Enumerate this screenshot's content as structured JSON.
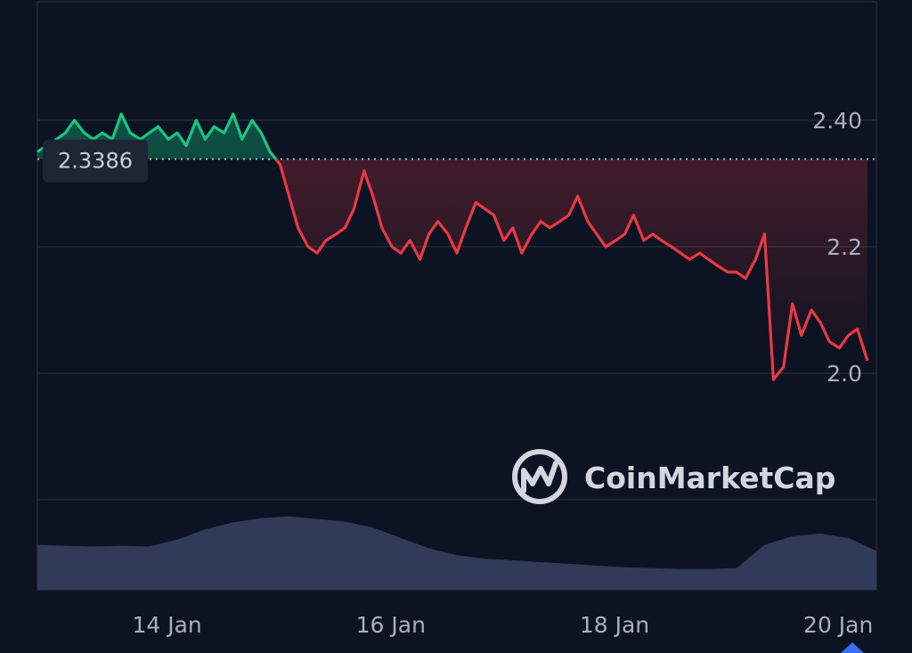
{
  "watermark": {
    "text": "CoinMarketCap",
    "icon": "coinmarketcap-logo-icon"
  },
  "colors": {
    "background": "#0c1322",
    "grid": "#222a38",
    "up": "#16c784",
    "down": "#ea3943",
    "volume": "#323a59",
    "text": "#a8afbd",
    "reference_badge": "#1e2534"
  },
  "chart_data": {
    "type": "line",
    "title": "",
    "xlabel": "",
    "ylabel": "",
    "x_ticks": [
      "14 Jan",
      "16 Jan",
      "18 Jan",
      "20 Jan"
    ],
    "y_ticks": [
      "2.40",
      "2.2",
      "2.0"
    ],
    "ylim": [
      1.8,
      2.55
    ],
    "reference_line": {
      "value": 2.3386,
      "label": "2.3386",
      "style": "dotted"
    },
    "grid": true,
    "legend": "none",
    "color_rule": "above reference green, below reference red",
    "series": [
      {
        "x": [
          13.0,
          13.08,
          13.17,
          13.25,
          13.33,
          13.42,
          13.5,
          13.58,
          13.67,
          13.75,
          13.83,
          13.92,
          14.0,
          14.08,
          14.17,
          14.25,
          14.33,
          14.42,
          14.5,
          14.58,
          14.67,
          14.75,
          14.83,
          14.92,
          15.0,
          15.08,
          15.17,
          15.25,
          15.33,
          15.42,
          15.5,
          15.58,
          15.67,
          15.75,
          15.83,
          15.92,
          16.0,
          16.08,
          16.17,
          16.25,
          16.33,
          16.42,
          16.5,
          16.58,
          16.67,
          16.75,
          16.83,
          16.92,
          17.0,
          17.08,
          17.17,
          17.25,
          17.33,
          17.42,
          17.5,
          17.58,
          17.67,
          17.75,
          17.83,
          17.92,
          18.0,
          18.08,
          18.17,
          18.25,
          18.33,
          18.42,
          18.5,
          18.58,
          18.67,
          18.75,
          18.83,
          18.92,
          19.0,
          19.08,
          19.17,
          19.25,
          19.33,
          19.42,
          19.5,
          19.58,
          19.67,
          19.75,
          19.83,
          19.92,
          20.0,
          20.08,
          20.17,
          20.25,
          20.33,
          20.42
        ],
        "values": [
          2.35,
          2.36,
          2.37,
          2.38,
          2.4,
          2.38,
          2.37,
          2.38,
          2.37,
          2.41,
          2.38,
          2.37,
          2.38,
          2.39,
          2.37,
          2.38,
          2.36,
          2.4,
          2.37,
          2.39,
          2.38,
          2.41,
          2.37,
          2.4,
          2.38,
          2.35,
          2.33,
          2.28,
          2.23,
          2.2,
          2.19,
          2.21,
          2.22,
          2.23,
          2.26,
          2.32,
          2.28,
          2.23,
          2.2,
          2.19,
          2.21,
          2.18,
          2.22,
          2.24,
          2.22,
          2.19,
          2.23,
          2.27,
          2.26,
          2.25,
          2.21,
          2.23,
          2.19,
          2.22,
          2.24,
          2.23,
          2.24,
          2.25,
          2.28,
          2.24,
          2.22,
          2.2,
          2.21,
          2.22,
          2.25,
          2.21,
          2.22,
          2.21,
          2.2,
          2.19,
          2.18,
          2.19,
          2.18,
          2.17,
          2.16,
          2.16,
          2.15,
          2.18,
          2.22,
          1.99,
          2.01,
          2.11,
          2.06,
          2.1,
          2.08,
          2.05,
          2.04,
          2.06,
          2.07,
          2.02
        ]
      },
      {
        "name": "",
        "kind": "volume",
        "x": [
          13.0,
          13.25,
          13.5,
          13.75,
          14.0,
          14.25,
          14.5,
          14.75,
          15.0,
          15.25,
          15.5,
          15.75,
          16.0,
          16.25,
          16.5,
          16.75,
          17.0,
          17.25,
          17.5,
          17.75,
          18.0,
          18.25,
          18.5,
          18.75,
          19.0,
          19.25,
          19.5,
          19.75,
          20.0,
          20.25,
          20.5
        ],
        "values": [
          0.52,
          0.51,
          0.5,
          0.51,
          0.5,
          0.58,
          0.7,
          0.78,
          0.83,
          0.85,
          0.82,
          0.79,
          0.72,
          0.6,
          0.48,
          0.4,
          0.36,
          0.34,
          0.32,
          0.3,
          0.28,
          0.26,
          0.25,
          0.24,
          0.24,
          0.25,
          0.52,
          0.62,
          0.65,
          0.6,
          0.45
        ]
      }
    ]
  }
}
